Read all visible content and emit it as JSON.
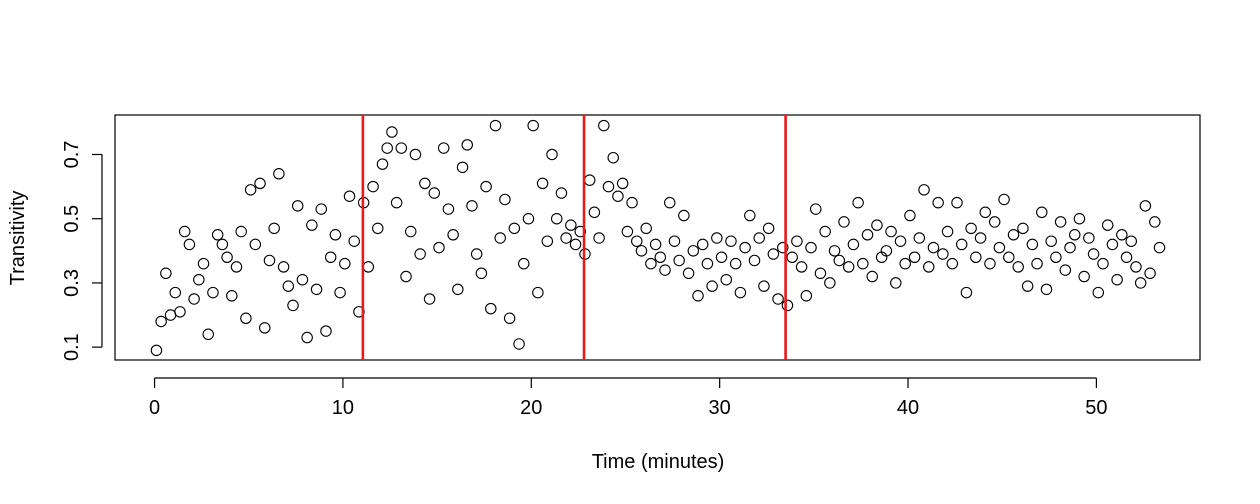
{
  "chart_data": {
    "type": "scatter",
    "x_label": "Time (minutes)",
    "y_label": "Transitivity",
    "xlim": [
      -2.1,
      55.5
    ],
    "ylim": [
      0.06,
      0.823
    ],
    "xticks": [
      0,
      10,
      20,
      30,
      40,
      50
    ],
    "yticks": [
      0.1,
      0.3,
      0.5,
      0.7
    ],
    "color": "#000000",
    "vline_color": "#e8191c",
    "vlines": [
      11.06,
      22.8,
      33.5
    ],
    "x": [
      0.1,
      0.35,
      0.6,
      0.85,
      1.1,
      1.35,
      1.6,
      1.85,
      2.1,
      2.35,
      2.6,
      2.85,
      3.1,
      3.35,
      3.6,
      3.85,
      4.1,
      4.35,
      4.6,
      4.85,
      5.1,
      5.35,
      5.6,
      5.85,
      6.1,
      6.35,
      6.6,
      6.85,
      7.1,
      7.35,
      7.6,
      7.85,
      8.1,
      8.35,
      8.6,
      8.85,
      9.1,
      9.35,
      9.6,
      9.85,
      10.1,
      10.35,
      10.6,
      10.85,
      11.1,
      11.35,
      11.6,
      11.85,
      12.1,
      12.35,
      12.6,
      12.85,
      13.1,
      13.35,
      13.6,
      13.85,
      14.1,
      14.35,
      14.6,
      14.85,
      15.1,
      15.35,
      15.6,
      15.85,
      16.1,
      16.35,
      16.6,
      16.85,
      17.1,
      17.35,
      17.6,
      17.85,
      18.1,
      18.35,
      18.6,
      18.85,
      19.1,
      19.35,
      19.6,
      19.85,
      20.1,
      20.35,
      20.6,
      20.85,
      21.1,
      21.35,
      21.6,
      21.85,
      22.1,
      22.35,
      22.6,
      22.85,
      23.1,
      23.35,
      23.6,
      23.85,
      24.1,
      24.35,
      24.6,
      24.85,
      25.1,
      25.35,
      25.6,
      25.85,
      26.1,
      26.35,
      26.6,
      26.85,
      27.1,
      27.35,
      27.6,
      27.85,
      28.1,
      28.35,
      28.6,
      28.85,
      29.1,
      29.35,
      29.6,
      29.85,
      30.1,
      30.35,
      30.6,
      30.85,
      31.1,
      31.35,
      31.6,
      31.85,
      32.1,
      32.35,
      32.6,
      32.85,
      33.1,
      33.35,
      33.6,
      33.85,
      34.1,
      34.35,
      34.6,
      34.85,
      35.1,
      35.35,
      35.6,
      35.85,
      36.1,
      36.35,
      36.6,
      36.85,
      37.1,
      37.35,
      37.6,
      37.85,
      38.1,
      38.35,
      38.6,
      38.85,
      39.1,
      39.35,
      39.6,
      39.85,
      40.1,
      40.35,
      40.6,
      40.85,
      41.1,
      41.35,
      41.6,
      41.85,
      42.1,
      42.35,
      42.6,
      42.85,
      43.1,
      43.35,
      43.6,
      43.85,
      44.1,
      44.35,
      44.6,
      44.85,
      45.1,
      45.35,
      45.6,
      45.85,
      46.1,
      46.35,
      46.6,
      46.85,
      47.1,
      47.35,
      47.6,
      47.85,
      48.1,
      48.35,
      48.6,
      48.85,
      49.1,
      49.35,
      49.6,
      49.85,
      50.1,
      50.35,
      50.6,
      50.85,
      51.1,
      51.35,
      51.6,
      51.85,
      52.1,
      52.35,
      52.6,
      52.85,
      53.1,
      53.35
    ],
    "values": [
      0.09,
      0.18,
      0.33,
      0.2,
      0.27,
      0.21,
      0.46,
      0.42,
      0.25,
      0.31,
      0.36,
      0.14,
      0.27,
      0.45,
      0.42,
      0.38,
      0.26,
      0.35,
      0.46,
      0.19,
      0.59,
      0.42,
      0.61,
      0.16,
      0.37,
      0.47,
      0.64,
      0.35,
      0.29,
      0.23,
      0.54,
      0.31,
      0.13,
      0.48,
      0.28,
      0.53,
      0.15,
      0.38,
      0.45,
      0.27,
      0.36,
      0.57,
      0.43,
      0.21,
      0.55,
      0.35,
      0.6,
      0.47,
      0.67,
      0.72,
      0.77,
      0.55,
      0.72,
      0.32,
      0.46,
      0.7,
      0.39,
      0.61,
      0.25,
      0.58,
      0.41,
      0.72,
      0.53,
      0.45,
      0.28,
      0.66,
      0.73,
      0.54,
      0.39,
      0.33,
      0.6,
      0.22,
      0.79,
      0.44,
      0.56,
      0.19,
      0.47,
      0.11,
      0.36,
      0.5,
      0.79,
      0.27,
      0.61,
      0.43,
      0.7,
      0.5,
      0.58,
      0.44,
      0.48,
      0.42,
      0.46,
      0.39,
      0.62,
      0.52,
      0.44,
      0.79,
      0.6,
      0.69,
      0.57,
      0.61,
      0.46,
      0.55,
      0.43,
      0.4,
      0.47,
      0.36,
      0.42,
      0.38,
      0.34,
      0.55,
      0.43,
      0.37,
      0.51,
      0.33,
      0.4,
      0.26,
      0.42,
      0.36,
      0.29,
      0.44,
      0.38,
      0.31,
      0.43,
      0.36,
      0.27,
      0.41,
      0.51,
      0.37,
      0.44,
      0.29,
      0.47,
      0.39,
      0.25,
      0.41,
      0.23,
      0.38,
      0.43,
      0.35,
      0.26,
      0.41,
      0.53,
      0.33,
      0.46,
      0.3,
      0.4,
      0.37,
      0.49,
      0.35,
      0.42,
      0.55,
      0.36,
      0.45,
      0.32,
      0.48,
      0.38,
      0.4,
      0.46,
      0.3,
      0.43,
      0.36,
      0.51,
      0.38,
      0.44,
      0.59,
      0.35,
      0.41,
      0.55,
      0.39,
      0.46,
      0.36,
      0.55,
      0.42,
      0.27,
      0.47,
      0.38,
      0.44,
      0.52,
      0.36,
      0.49,
      0.41,
      0.56,
      0.38,
      0.45,
      0.35,
      0.47,
      0.29,
      0.42,
      0.36,
      0.52,
      0.28,
      0.43,
      0.38,
      0.49,
      0.34,
      0.41,
      0.45,
      0.5,
      0.32,
      0.44,
      0.39,
      0.27,
      0.36,
      0.48,
      0.42,
      0.31,
      0.45,
      0.38,
      0.43,
      0.35,
      0.3,
      0.54,
      0.33,
      0.49,
      0.41
    ]
  }
}
